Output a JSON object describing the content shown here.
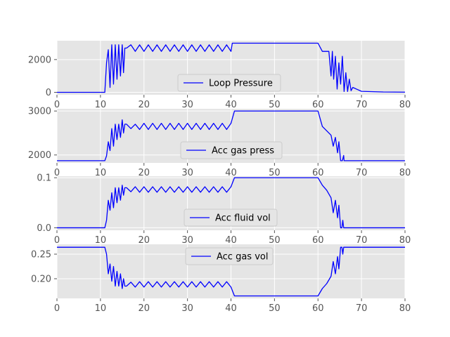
{
  "chart_data": [
    {
      "type": "line",
      "x": [
        0,
        11,
        11.4,
        11.8,
        12.2,
        12.6,
        13,
        13.4,
        13.8,
        14.2,
        14.6,
        15,
        15.3,
        15.6,
        16,
        17,
        18,
        19,
        20,
        21,
        22,
        23,
        24,
        25,
        26,
        27,
        28,
        29,
        30,
        31,
        32,
        33,
        34,
        35,
        36,
        37,
        38,
        39,
        40,
        40.3,
        45,
        50,
        55,
        60,
        61,
        62,
        62.5,
        63,
        63.3,
        63.6,
        64,
        64.4,
        64.8,
        65.2,
        65.6,
        66,
        66.4,
        66.8,
        67.2,
        67.6,
        68,
        70,
        75,
        80
      ],
      "series": [
        {
          "name": "Loop Pressure",
          "color": "#0000ff",
          "values": [
            0,
            0,
            1800,
            2600,
            300,
            2900,
            500,
            2900,
            800,
            2900,
            1000,
            2900,
            1200,
            2700,
            2700,
            2900,
            2500,
            2900,
            2500,
            2900,
            2500,
            2900,
            2500,
            2900,
            2500,
            2900,
            2500,
            2900,
            2500,
            2900,
            2500,
            2900,
            2500,
            2900,
            2500,
            2900,
            2500,
            2900,
            2500,
            3000,
            3000,
            3000,
            3000,
            3000,
            2500,
            2500,
            2500,
            1000,
            2500,
            800,
            2200,
            200,
            1800,
            500,
            2200,
            50,
            1200,
            50,
            800,
            100,
            300,
            60,
            20,
            10
          ]
        }
      ],
      "xlim": [
        0,
        80
      ],
      "ylim": [
        -150,
        3150
      ],
      "xticks": [
        0,
        10,
        20,
        30,
        40,
        50,
        60,
        70,
        80
      ],
      "yticks": [
        0,
        2000
      ],
      "legend": {
        "entries": [
          "Loop Pressure"
        ],
        "position": "lower-center"
      },
      "grid": true,
      "style": "ggplot"
    },
    {
      "type": "line",
      "x": [
        0,
        11,
        11.4,
        11.8,
        12.2,
        12.6,
        13,
        13.4,
        13.8,
        14.2,
        14.6,
        15,
        15.3,
        15.6,
        16,
        17,
        18,
        19,
        20,
        21,
        22,
        23,
        24,
        25,
        26,
        27,
        28,
        29,
        30,
        31,
        32,
        33,
        34,
        35,
        36,
        37,
        38,
        39,
        40,
        40.8,
        45,
        50,
        55,
        60,
        61,
        62,
        63,
        63.5,
        64,
        64.5,
        64.8,
        65.2,
        65.6,
        65.9,
        66,
        66.2,
        70,
        75,
        80
      ],
      "series": [
        {
          "name": "Acc gas press",
          "color": "#0000ff",
          "values": [
            1870,
            1870,
            1980,
            2300,
            2100,
            2600,
            2200,
            2700,
            2350,
            2700,
            2400,
            2800,
            2500,
            2700,
            2700,
            2600,
            2700,
            2580,
            2720,
            2580,
            2720,
            2580,
            2720,
            2580,
            2720,
            2580,
            2720,
            2580,
            2720,
            2580,
            2720,
            2580,
            2720,
            2580,
            2720,
            2580,
            2720,
            2580,
            2720,
            3000,
            3000,
            3000,
            3000,
            3000,
            2650,
            2550,
            2450,
            2200,
            2400,
            2050,
            2300,
            1870,
            1870,
            1990,
            1870,
            1870,
            1870,
            1870,
            1870
          ]
        }
      ],
      "xlim": [
        0,
        80
      ],
      "ylim": [
        1820,
        3050
      ],
      "xticks": [
        0,
        10,
        20,
        30,
        40,
        50,
        60,
        70,
        80
      ],
      "yticks": [
        2000,
        3000
      ],
      "legend": {
        "entries": [
          "Acc gas press"
        ],
        "position": "lower-center"
      },
      "grid": true,
      "style": "ggplot"
    },
    {
      "type": "line",
      "x": [
        0,
        11,
        11.4,
        11.8,
        12.2,
        12.6,
        13,
        13.4,
        13.8,
        14.2,
        14.6,
        15,
        15.3,
        15.6,
        16,
        17,
        18,
        19,
        20,
        21,
        22,
        23,
        24,
        25,
        26,
        27,
        28,
        29,
        30,
        31,
        32,
        33,
        34,
        35,
        36,
        37,
        38,
        39,
        40,
        40.8,
        45,
        50,
        55,
        60,
        61,
        62,
        63,
        63.5,
        64,
        64.5,
        64.8,
        65.2,
        65.5,
        65.7,
        65.9,
        66.2,
        70,
        75,
        80
      ],
      "series": [
        {
          "name": "Acc fluid vol",
          "color": "#0000ff",
          "values": [
            0,
            0,
            0.015,
            0.055,
            0.035,
            0.07,
            0.04,
            0.08,
            0.05,
            0.08,
            0.055,
            0.085,
            0.065,
            0.08,
            0.08,
            0.072,
            0.082,
            0.071,
            0.082,
            0.071,
            0.082,
            0.071,
            0.082,
            0.071,
            0.082,
            0.071,
            0.082,
            0.071,
            0.082,
            0.071,
            0.082,
            0.071,
            0.082,
            0.071,
            0.082,
            0.071,
            0.082,
            0.071,
            0.082,
            0.1,
            0.1,
            0.1,
            0.1,
            0.1,
            0.085,
            0.075,
            0.06,
            0.03,
            0.055,
            0.02,
            0.045,
            0,
            0,
            0.015,
            0,
            0,
            0,
            0,
            0
          ]
        }
      ],
      "xlim": [
        0,
        80
      ],
      "ylim": [
        -0.005,
        0.103
      ],
      "xticks": [
        0,
        10,
        20,
        30,
        40,
        50,
        60,
        70,
        80
      ],
      "yticks": [
        0.0,
        0.1
      ],
      "ytick_labels": [
        "0.0",
        "0.1"
      ],
      "legend": {
        "entries": [
          "Acc fluid vol"
        ],
        "position": "lower-center"
      },
      "grid": true,
      "style": "ggplot"
    },
    {
      "type": "line",
      "x": [
        0,
        11,
        11.4,
        11.8,
        12.2,
        12.6,
        13,
        13.4,
        13.8,
        14.2,
        14.6,
        15,
        15.3,
        15.6,
        16,
        17,
        18,
        19,
        20,
        21,
        22,
        23,
        24,
        25,
        26,
        27,
        28,
        29,
        30,
        31,
        32,
        33,
        34,
        35,
        36,
        37,
        38,
        39,
        40,
        40.8,
        45,
        50,
        55,
        60,
        61,
        62,
        63,
        63.5,
        64,
        64.5,
        64.8,
        65.2,
        65.5,
        65.7,
        65.9,
        66.2,
        70,
        75,
        80
      ],
      "series": [
        {
          "name": "Acc gas vol",
          "color": "#0000ff",
          "values": [
            0.264,
            0.264,
            0.25,
            0.21,
            0.23,
            0.195,
            0.225,
            0.185,
            0.215,
            0.185,
            0.21,
            0.18,
            0.2,
            0.185,
            0.185,
            0.193,
            0.183,
            0.194,
            0.183,
            0.194,
            0.183,
            0.194,
            0.183,
            0.194,
            0.183,
            0.194,
            0.183,
            0.194,
            0.183,
            0.194,
            0.183,
            0.194,
            0.183,
            0.194,
            0.183,
            0.194,
            0.183,
            0.194,
            0.183,
            0.165,
            0.165,
            0.165,
            0.165,
            0.165,
            0.18,
            0.19,
            0.205,
            0.235,
            0.21,
            0.245,
            0.22,
            0.264,
            0.264,
            0.25,
            0.264,
            0.264,
            0.264,
            0.264,
            0.264
          ]
        }
      ],
      "xlim": [
        0,
        80
      ],
      "ylim": [
        0.16,
        0.27
      ],
      "xticks": [
        0,
        10,
        20,
        30,
        40,
        50,
        60,
        70,
        80
      ],
      "yticks": [
        0.2,
        0.25
      ],
      "ytick_labels": [
        "0.20",
        "0.25"
      ],
      "legend": {
        "entries": [
          "Acc gas vol"
        ],
        "position": "upper-center"
      },
      "grid": true,
      "style": "ggplot"
    }
  ],
  "style": {
    "panel_background": "#e5e5e5",
    "grid_color": "#ffffff",
    "tick_color": "#555555",
    "line_color": "#0000ff",
    "legend_background": "#e5e5e5",
    "legend_border": "#cccccc"
  }
}
